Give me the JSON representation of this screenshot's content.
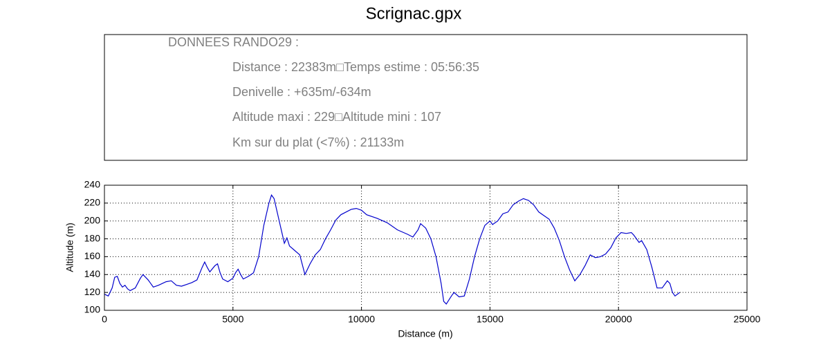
{
  "chart_data": {
    "type": "line",
    "title": "Scrignac.gpx",
    "info_lines": [
      "DONNEES RANDO29  :",
      "Distance : 22383m□Temps estime : 05:56:35",
      "Denivelle : +635m/-634m",
      "Altitude maxi : 229□Altitude mini : 107",
      "Km sur du plat (<7%) : 21133m"
    ],
    "xlabel": "Distance (m)",
    "ylabel": "Altitude (m)",
    "x": [
      0,
      150,
      300,
      400,
      500,
      600,
      700,
      800,
      900,
      1000,
      1200,
      1400,
      1500,
      1600,
      1700,
      1800,
      1900,
      2100,
      2400,
      2600,
      2800,
      3000,
      3200,
      3400,
      3600,
      3800,
      3900,
      4000,
      4100,
      4300,
      4400,
      4500,
      4600,
      4800,
      5000,
      5100,
      5200,
      5300,
      5400,
      5600,
      5800,
      6000,
      6200,
      6400,
      6500,
      6600,
      6800,
      7000,
      7100,
      7200,
      7400,
      7600,
      7800,
      8000,
      8200,
      8400,
      8600,
      8800,
      9000,
      9200,
      9400,
      9600,
      9800,
      10000,
      10200,
      10600,
      11000,
      11400,
      11800,
      12000,
      12200,
      12300,
      12500,
      12700,
      12900,
      13100,
      13200,
      13300,
      13500,
      13600,
      13800,
      14000,
      14200,
      14400,
      14600,
      14800,
      15000,
      15100,
      15300,
      15500,
      15700,
      15900,
      16100,
      16300,
      16500,
      16700,
      16900,
      17100,
      17300,
      17500,
      17700,
      17900,
      18100,
      18300,
      18500,
      18700,
      18900,
      19100,
      19300,
      19500,
      19700,
      19900,
      20100,
      20300,
      20500,
      20600,
      20800,
      20900,
      21100,
      21300,
      21500,
      21700,
      21900,
      22000,
      22100,
      22200,
      22383
    ],
    "series": [
      {
        "name": "Altitude",
        "color": "#0000cc",
        "values": [
          118,
          116,
          125,
          137,
          138,
          130,
          126,
          128,
          124,
          122,
          125,
          136,
          140,
          137,
          134,
          130,
          126,
          128,
          132,
          133,
          128,
          127,
          129,
          131,
          134,
          148,
          154,
          148,
          143,
          150,
          152,
          142,
          135,
          132,
          136,
          142,
          146,
          140,
          135,
          138,
          142,
          160,
          195,
          220,
          229,
          225,
          200,
          175,
          181,
          172,
          167,
          162,
          140,
          152,
          162,
          168,
          180,
          190,
          201,
          207,
          210,
          213,
          214,
          212,
          207,
          203,
          198,
          190,
          185,
          182,
          190,
          197,
          192,
          180,
          160,
          130,
          110,
          107,
          116,
          120,
          115,
          116,
          135,
          160,
          180,
          195,
          200,
          196,
          200,
          208,
          210,
          218,
          222,
          225,
          223,
          218,
          210,
          206,
          202,
          192,
          178,
          160,
          145,
          133,
          140,
          150,
          162,
          159,
          160,
          163,
          170,
          181,
          187,
          186,
          187,
          184,
          176,
          178,
          168,
          148,
          125,
          125,
          133,
          130,
          120,
          116,
          120
        ]
      }
    ],
    "xlim": [
      0,
      25000
    ],
    "xticks": [
      0,
      5000,
      10000,
      15000,
      20000,
      25000
    ],
    "ylim": [
      100,
      240
    ],
    "yticks": [
      100,
      120,
      140,
      160,
      180,
      200,
      220,
      240
    ],
    "grid": true
  }
}
